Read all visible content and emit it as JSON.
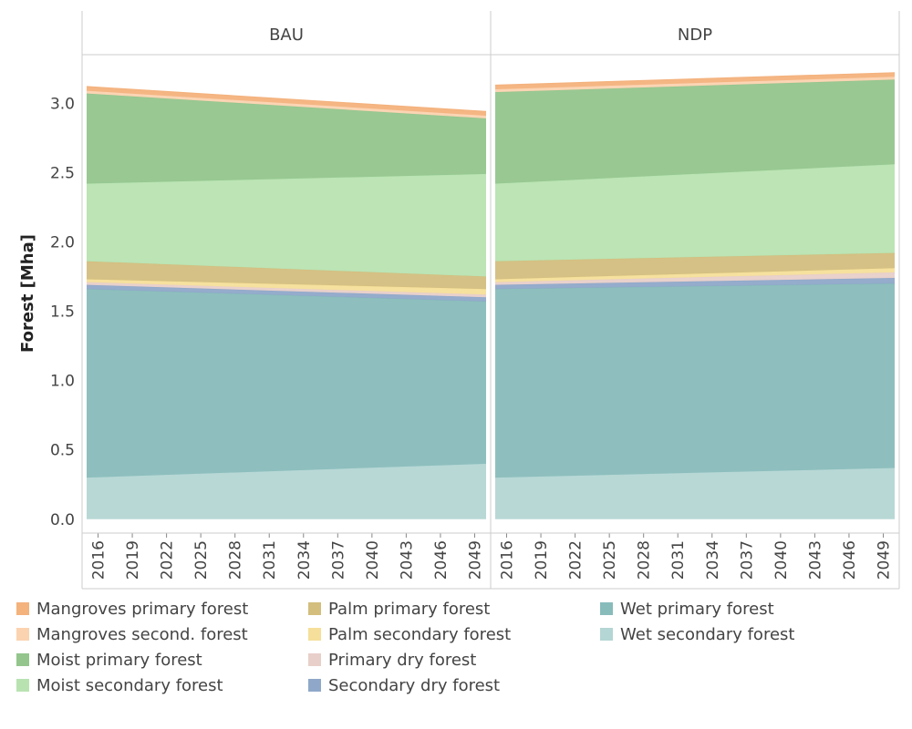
{
  "chart_data": {
    "type": "area",
    "stacked": true,
    "ylabel": "Forest [Mha]",
    "ylim": [
      -0.1,
      3.35
    ],
    "yticks": [
      "0.0",
      "0.5",
      "1.0",
      "1.5",
      "2.0",
      "2.5",
      "3.0"
    ],
    "xticks": [
      "2016",
      "2019",
      "2022",
      "2025",
      "2028",
      "2031",
      "2034",
      "2037",
      "2040",
      "2043",
      "2046",
      "2049"
    ],
    "x_range": [
      2015,
      2050
    ],
    "grid": false,
    "legend_position": "bottom",
    "panels": [
      {
        "title": "BAU",
        "x": [
          2015,
          2050
        ],
        "series": [
          {
            "name": "Wet secondary forest",
            "color": "#b4d6d4",
            "values": [
              0.3,
              0.4
            ]
          },
          {
            "name": "Wet primary forest",
            "color": "#88bcbb",
            "values": [
              1.36,
              1.17
            ]
          },
          {
            "name": "Secondary dry forest",
            "color": "#8fa8c9",
            "values": [
              0.03,
              0.03
            ]
          },
          {
            "name": "Primary dry forest",
            "color": "#e8cfc9",
            "values": [
              0.02,
              0.02
            ]
          },
          {
            "name": "Palm secondary forest",
            "color": "#f6df9a",
            "values": [
              0.02,
              0.04
            ]
          },
          {
            "name": "Palm primary forest",
            "color": "#d3be7e",
            "values": [
              0.13,
              0.09
            ]
          },
          {
            "name": "Moist secondary forest",
            "color": "#b8e3b1",
            "values": [
              0.56,
              0.74
            ]
          },
          {
            "name": "Moist primary forest",
            "color": "#94c58d",
            "values": [
              0.65,
              0.4
            ]
          },
          {
            "name": "Mangroves second. forest",
            "color": "#fbd3b1",
            "values": [
              0.02,
              0.02
            ]
          },
          {
            "name": "Mangroves primary forest",
            "color": "#f4b27d",
            "values": [
              0.03,
              0.03
            ]
          }
        ]
      },
      {
        "title": "NDP",
        "x": [
          2015,
          2050
        ],
        "series": [
          {
            "name": "Wet secondary forest",
            "color": "#b4d6d4",
            "values": [
              0.3,
              0.37
            ]
          },
          {
            "name": "Wet primary forest",
            "color": "#88bcbb",
            "values": [
              1.36,
              1.33
            ]
          },
          {
            "name": "Secondary dry forest",
            "color": "#8fa8c9",
            "values": [
              0.03,
              0.04
            ]
          },
          {
            "name": "Primary dry forest",
            "color": "#e8cfc9",
            "values": [
              0.02,
              0.04
            ]
          },
          {
            "name": "Palm secondary forest",
            "color": "#f6df9a",
            "values": [
              0.02,
              0.03
            ]
          },
          {
            "name": "Palm primary forest",
            "color": "#d3be7e",
            "values": [
              0.13,
              0.11
            ]
          },
          {
            "name": "Moist secondary forest",
            "color": "#b8e3b1",
            "values": [
              0.56,
              0.64
            ]
          },
          {
            "name": "Moist primary forest",
            "color": "#94c58d",
            "values": [
              0.66,
              0.61
            ]
          },
          {
            "name": "Mangroves second. forest",
            "color": "#fbd3b1",
            "values": [
              0.02,
              0.02
            ]
          },
          {
            "name": "Mangroves primary forest",
            "color": "#f4b27d",
            "values": [
              0.03,
              0.03
            ]
          }
        ]
      }
    ],
    "legend": {
      "columns": [
        [
          {
            "label": "Mangroves primary forest",
            "color": "#f4b27d"
          },
          {
            "label": "Mangroves second. forest",
            "color": "#fbd3b1"
          },
          {
            "label": "Moist primary forest",
            "color": "#94c58d"
          },
          {
            "label": "Moist secondary forest",
            "color": "#b8e3b1"
          }
        ],
        [
          {
            "label": "Palm primary forest",
            "color": "#d3be7e"
          },
          {
            "label": "Palm secondary forest",
            "color": "#f6df9a"
          },
          {
            "label": "Primary dry forest",
            "color": "#e8cfc9"
          },
          {
            "label": "Secondary dry forest",
            "color": "#8fa8c9"
          }
        ],
        [
          {
            "label": "Wet primary forest",
            "color": "#88bcbb"
          },
          {
            "label": "Wet secondary forest",
            "color": "#b4d6d4"
          }
        ]
      ]
    }
  }
}
